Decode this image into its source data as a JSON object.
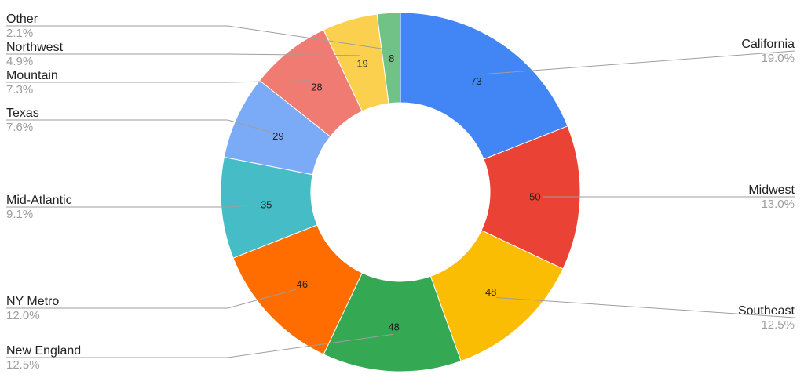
{
  "chart_data": {
    "type": "pie",
    "donut": true,
    "title": "",
    "legend": "none",
    "categories": [
      "California",
      "Midwest",
      "Southeast",
      "New England",
      "NY Metro",
      "Mid-Atlantic",
      "Texas",
      "Mountain",
      "Northwest",
      "Other"
    ],
    "values": [
      73,
      50,
      48,
      48,
      46,
      35,
      29,
      28,
      19,
      8
    ],
    "percent_labels": [
      "19.0%",
      "13.0%",
      "12.5%",
      "12.5%",
      "12.0%",
      "9.1%",
      "7.6%",
      "7.3%",
      "4.9%",
      "2.1%"
    ],
    "colors": [
      "#4285F4",
      "#EA4335",
      "#FBBC04",
      "#34A853",
      "#FF6D01",
      "#46BDC6",
      "#7BAAF7",
      "#F07B72",
      "#FCD04F",
      "#71C287"
    ]
  }
}
